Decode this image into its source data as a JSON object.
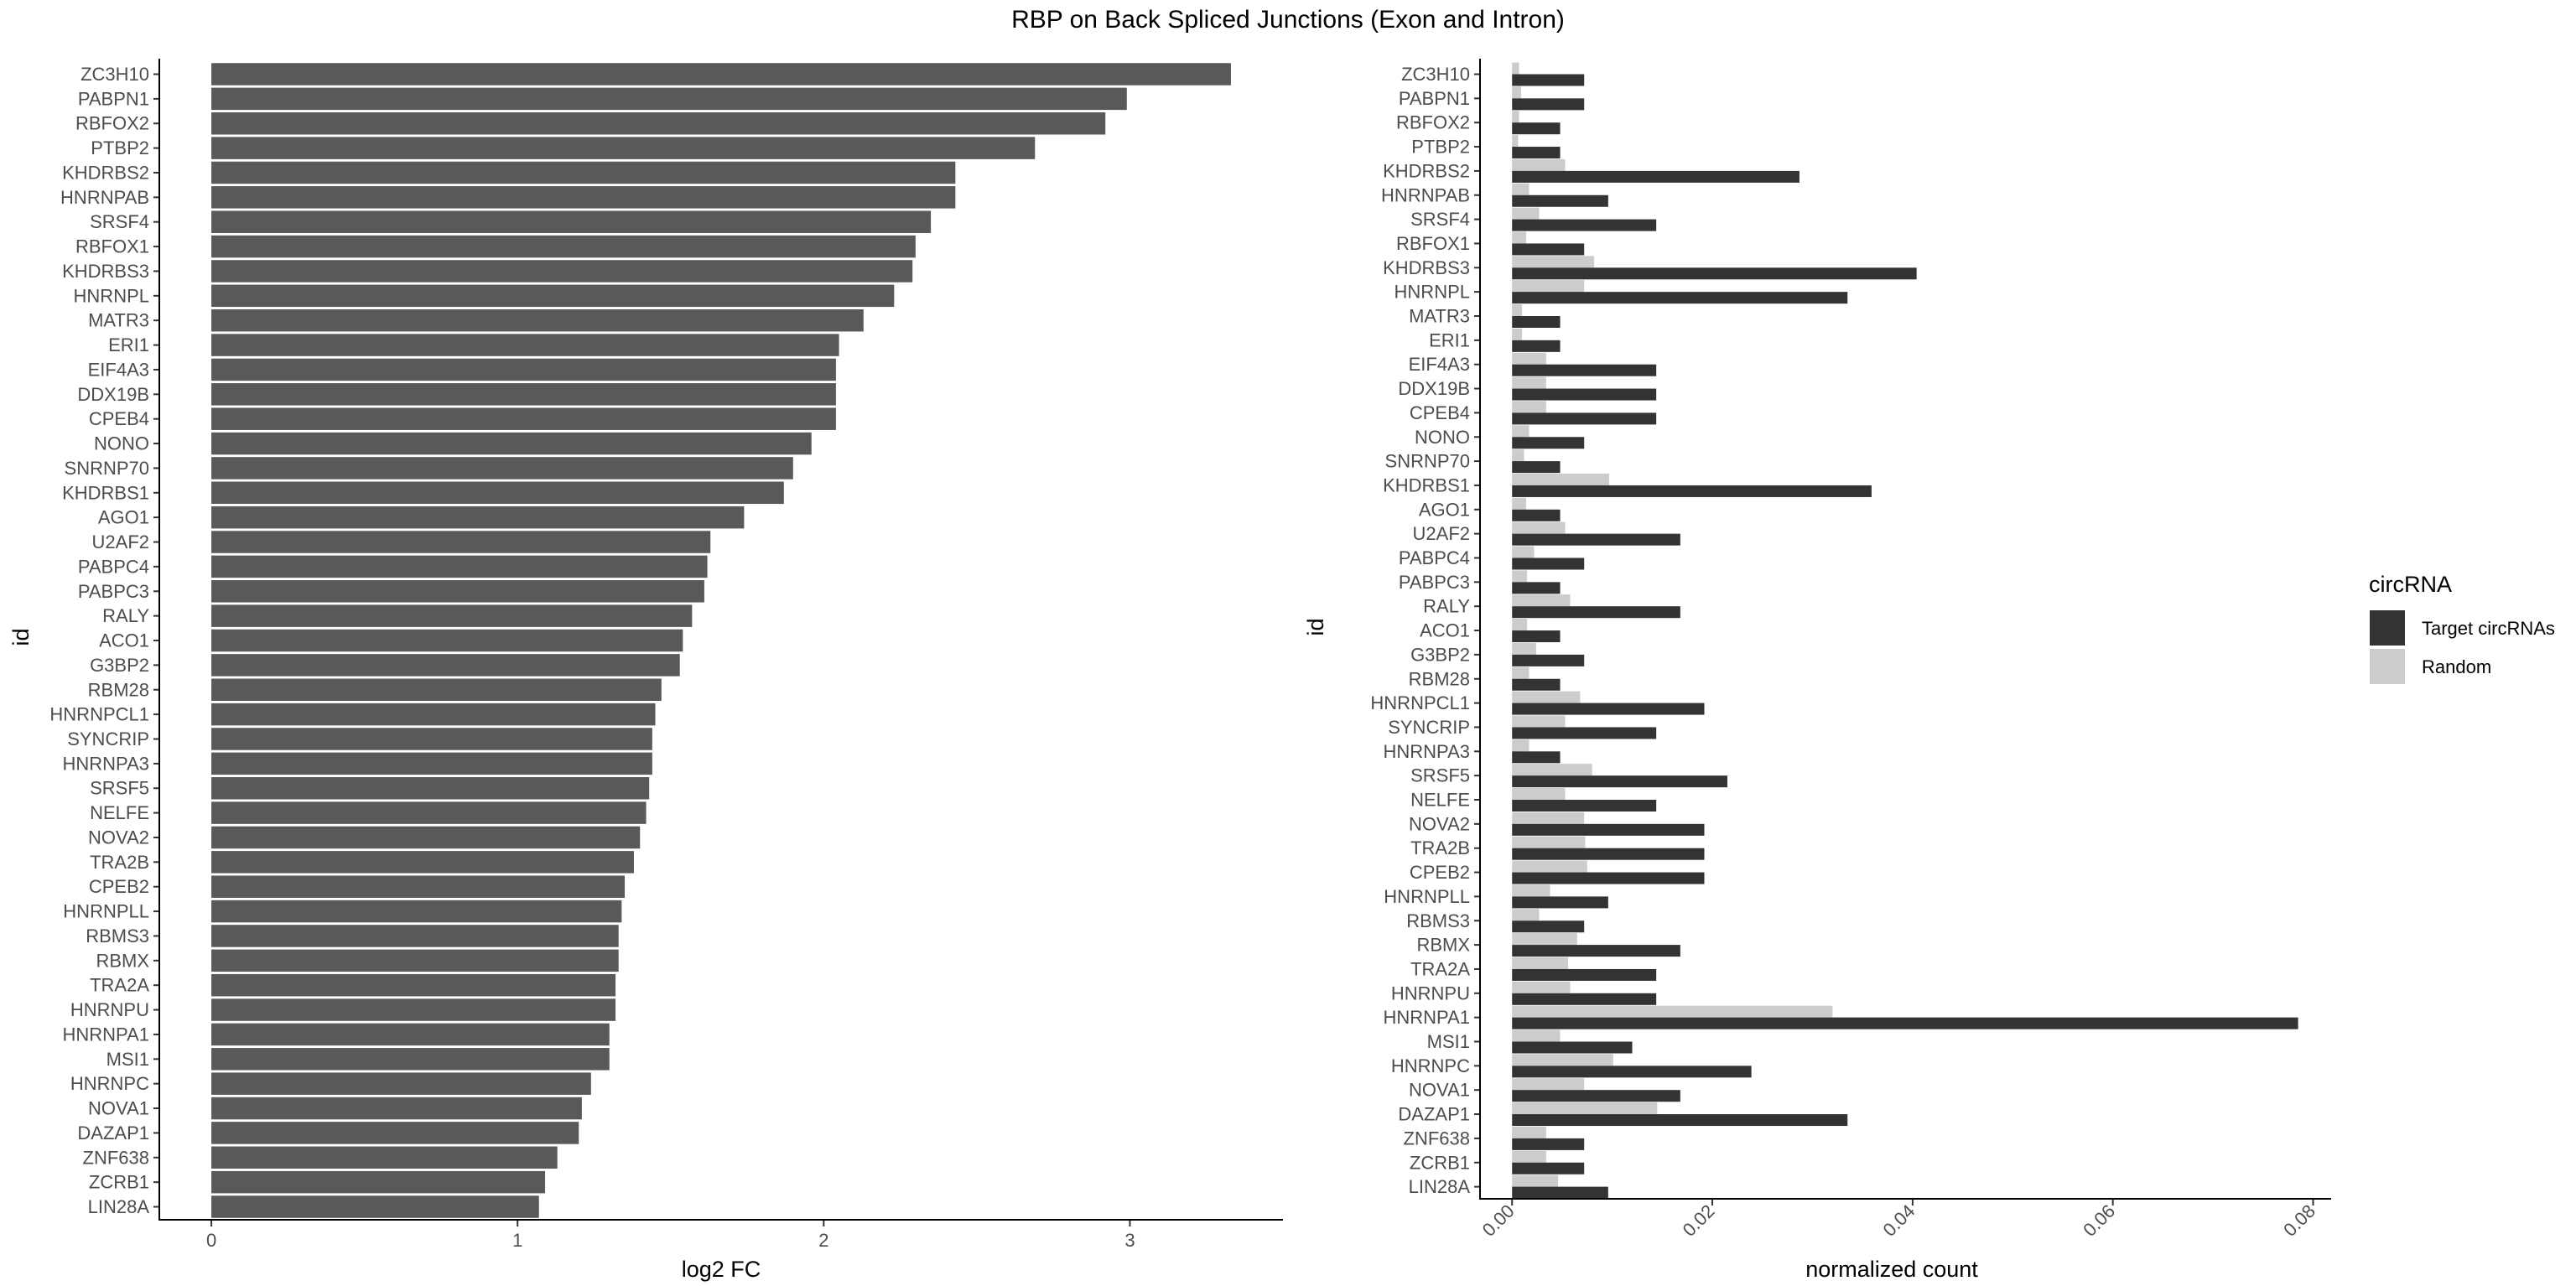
{
  "title": "RBP on Back Spliced Junctions (Exon and Intron)",
  "colors": {
    "left_bar": "#595959",
    "target": "#333333",
    "random": "#cccccc",
    "axis": "#000000",
    "tick_text": "#4d4d4d"
  },
  "chart_data": [
    {
      "type": "bar",
      "orientation": "horizontal",
      "xlabel": "log2 FC",
      "ylabel": "id",
      "xlim": [
        -0.17,
        3.5
      ],
      "x_ticks": [
        "0",
        "1",
        "2",
        "3"
      ],
      "categories": [
        "ZC3H10",
        "PABPN1",
        "RBFOX2",
        "PTBP2",
        "KHDRBS2",
        "HNRNPAB",
        "SRSF4",
        "RBFOX1",
        "KHDRBS3",
        "HNRNPL",
        "MATR3",
        "ERI1",
        "EIF4A3",
        "DDX19B",
        "CPEB4",
        "NONO",
        "SNRNP70",
        "KHDRBS1",
        "AGO1",
        "U2AF2",
        "PABPC4",
        "PABPC3",
        "RALY",
        "ACO1",
        "G3BP2",
        "RBM28",
        "HNRNPCL1",
        "SYNCRIP",
        "HNRNPA3",
        "SRSF5",
        "NELFE",
        "NOVA2",
        "TRA2B",
        "CPEB2",
        "HNRNPLL",
        "RBMS3",
        "RBMX",
        "TRA2A",
        "HNRNPU",
        "HNRNPA1",
        "MSI1",
        "HNRNPC",
        "NOVA1",
        "DAZAP1",
        "ZNF638",
        "ZCRB1",
        "LIN28A"
      ],
      "values": [
        3.33,
        2.99,
        2.92,
        2.69,
        2.43,
        2.43,
        2.35,
        2.3,
        2.29,
        2.23,
        2.13,
        2.05,
        2.04,
        2.04,
        2.04,
        1.96,
        1.9,
        1.87,
        1.74,
        1.63,
        1.62,
        1.61,
        1.57,
        1.54,
        1.53,
        1.47,
        1.45,
        1.44,
        1.44,
        1.43,
        1.42,
        1.4,
        1.38,
        1.35,
        1.34,
        1.33,
        1.33,
        1.32,
        1.32,
        1.3,
        1.3,
        1.24,
        1.21,
        1.2,
        1.13,
        1.09,
        1.07
      ]
    },
    {
      "type": "bar",
      "orientation": "horizontal",
      "grouped": true,
      "xlabel": "normalized count",
      "ylabel": "id",
      "xlim": [
        -0.0032,
        0.0818
      ],
      "x_ticks": [
        "0.00",
        "0.02",
        "0.04",
        "0.06",
        "0.08"
      ],
      "categories": [
        "ZC3H10",
        "PABPN1",
        "RBFOX2",
        "PTBP2",
        "KHDRBS2",
        "HNRNPAB",
        "SRSF4",
        "RBFOX1",
        "KHDRBS3",
        "HNRNPL",
        "MATR3",
        "ERI1",
        "EIF4A3",
        "DDX19B",
        "CPEB4",
        "NONO",
        "SNRNP70",
        "KHDRBS1",
        "AGO1",
        "U2AF2",
        "PABPC4",
        "PABPC3",
        "RALY",
        "ACO1",
        "G3BP2",
        "RBM28",
        "HNRNPCL1",
        "SYNCRIP",
        "HNRNPA3",
        "SRSF5",
        "NELFE",
        "NOVA2",
        "TRA2B",
        "CPEB2",
        "HNRNPLL",
        "RBMS3",
        "RBMX",
        "TRA2A",
        "HNRNPU",
        "HNRNPA1",
        "MSI1",
        "HNRNPC",
        "NOVA1",
        "DAZAP1",
        "ZNF638",
        "ZCRB1",
        "LIN28A"
      ],
      "legend_title": "circRNA",
      "legend_position": "right",
      "series": [
        {
          "name": "Target circRNAs",
          "color": "#333333",
          "values": [
            0.0072,
            0.0072,
            0.0048,
            0.0048,
            0.0287,
            0.0096,
            0.0144,
            0.0072,
            0.0404,
            0.0335,
            0.0048,
            0.0048,
            0.0144,
            0.0144,
            0.0144,
            0.0072,
            0.0048,
            0.0359,
            0.0048,
            0.0168,
            0.0072,
            0.0048,
            0.0168,
            0.0048,
            0.0072,
            0.0048,
            0.0192,
            0.0144,
            0.0048,
            0.0215,
            0.0144,
            0.0192,
            0.0192,
            0.0192,
            0.0096,
            0.0072,
            0.0168,
            0.0144,
            0.0144,
            0.0785,
            0.012,
            0.0239,
            0.0168,
            0.0335,
            0.0072,
            0.0072,
            0.0096
          ]
        },
        {
          "name": "Random",
          "color": "#cccccc",
          "values": [
            0.0007,
            0.0009,
            0.0007,
            0.0006,
            0.0053,
            0.0017,
            0.0027,
            0.0014,
            0.0082,
            0.0072,
            0.001,
            0.001,
            0.0034,
            0.0034,
            0.0034,
            0.0017,
            0.0012,
            0.0097,
            0.0014,
            0.0053,
            0.0022,
            0.0015,
            0.0058,
            0.0015,
            0.0024,
            0.0017,
            0.0068,
            0.0053,
            0.0017,
            0.008,
            0.0053,
            0.0072,
            0.0073,
            0.0075,
            0.0038,
            0.0027,
            0.0065,
            0.0056,
            0.0058,
            0.032,
            0.0048,
            0.0101,
            0.0072,
            0.0145,
            0.0034,
            0.0034,
            0.0046
          ]
        }
      ]
    }
  ]
}
